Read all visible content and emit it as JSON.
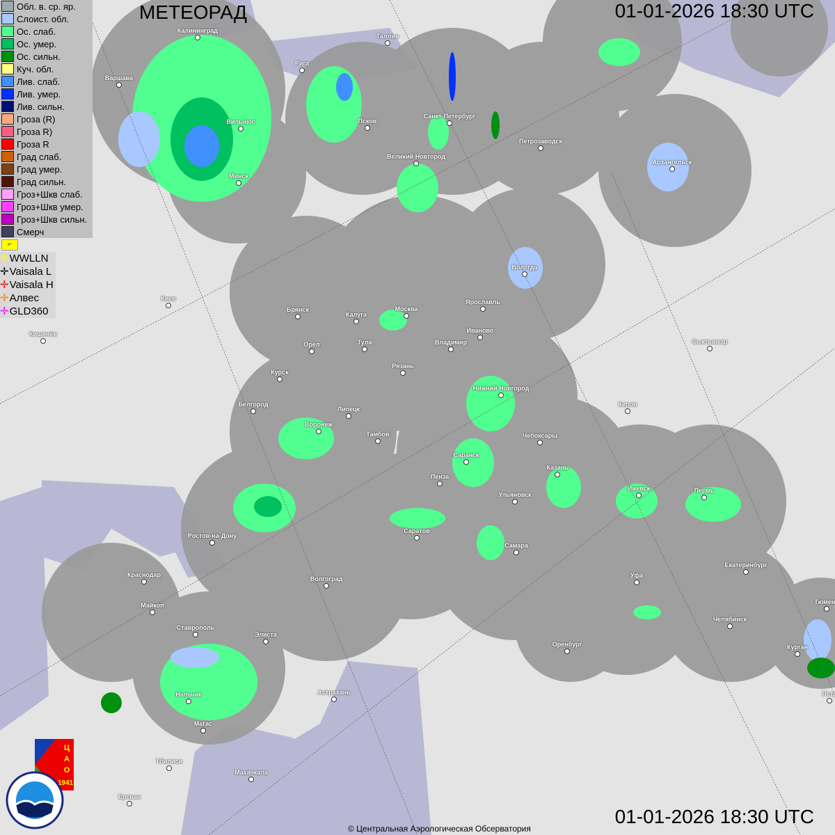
{
  "title": "МЕТЕОРАД",
  "timestamp_top": "01-01-2026  18:30 UTC",
  "timestamp_bottom": "01-01-2026  18:30 UTC",
  "copyright": "© Центральная Аэрологическая Обсерватория",
  "legend": [
    {
      "label": "Обл. в. ср. яр.",
      "color": "#a0a8b0"
    },
    {
      "label": "Слоист. обл.",
      "color": "#a8c8ff"
    },
    {
      "label": "Ос. слаб.",
      "color": "#50ff90"
    },
    {
      "label": "Ос. умер.",
      "color": "#00c060"
    },
    {
      "label": "Ос. сильн.",
      "color": "#009010"
    },
    {
      "label": "Куч. обл.",
      "color": "#ffff80"
    },
    {
      "label": "Лив. слаб.",
      "color": "#4090ff"
    },
    {
      "label": "Лив. умер.",
      "color": "#0030ff"
    },
    {
      "label": "Лив. сильн.",
      "color": "#001070"
    },
    {
      "label": "Гроза (R)",
      "color": "#ffa880"
    },
    {
      "label": "Гроза R)",
      "color": "#ff6080"
    },
    {
      "label": "Гроза R",
      "color": "#ff0000"
    },
    {
      "label": "Град слаб.",
      "color": "#d06000"
    },
    {
      "label": "Град умер.",
      "color": "#804010"
    },
    {
      "label": "Град сильн.",
      "color": "#501008"
    },
    {
      "label": "Гроз+Шкв слаб.",
      "color": "#ffa0ff"
    },
    {
      "label": "Гроз+Шкв умер.",
      "color": "#ff40ff"
    },
    {
      "label": "Гроз+Шкв сильн.",
      "color": "#c000c0"
    },
    {
      "label": "Смерч",
      "color": "#404060"
    }
  ],
  "lightning": [
    {
      "label": "WWLLN",
      "color": "#ffff00"
    },
    {
      "label": "Vaisala L",
      "color": "#000000"
    },
    {
      "label": "Vaisala H",
      "color": "#ff0000"
    },
    {
      "label": "Алвес",
      "color": "#ff8000"
    },
    {
      "label": "GLD360",
      "color": "#ff00ff"
    }
  ],
  "flag_icon": "flag-icon",
  "logos": {
    "cao": "ЦАО 1941",
    "roshydromet": "РОСГИДРОМЕТ ROSHYDROMET"
  },
  "cities": [
    "Калининград",
    "Таллин",
    "Рига",
    "Варшава",
    "Вильнюс",
    "Минск",
    "Псков",
    "Санкт-Петербург",
    "Великий Новгород",
    "Петрозаводск",
    "Архангельск",
    "Вологда",
    "Киев",
    "Кишинёв",
    "Брянск",
    "Калуга",
    "Москва",
    "Ярославль",
    "Иваново",
    "Орёл",
    "Тула",
    "Владимир",
    "Сыктывкар",
    "Рязань",
    "Курск",
    "Нижний Новгород",
    "Белгород",
    "Липецк",
    "Киров",
    "Воронеж",
    "Тамбов",
    "Чебоксары",
    "Саранск",
    "Пенза",
    "Казань",
    "Ижевск",
    "Пермь",
    "Ульяновск",
    "Ростов-на-Дону",
    "Саратов",
    "Самара",
    "Краснодар",
    "Волгоград",
    "Уфа",
    "Екатеринбург",
    "Майкоп",
    "Тюмень",
    "Челябинск",
    "Ставрополь",
    "Элиста",
    "Оренбург",
    "Курган",
    "Нальчик",
    "Астрахань",
    "Магас",
    "Тбилиси",
    "Махачкала",
    "Ереван",
    "Петр"
  ]
}
